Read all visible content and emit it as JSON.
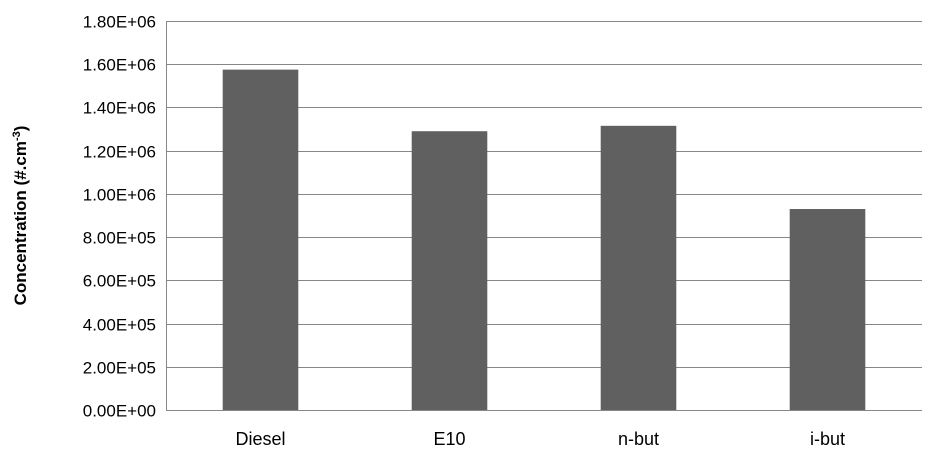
{
  "chart_data": {
    "type": "bar",
    "categories": [
      "Diesel",
      "E10",
      "n-but",
      "i-but"
    ],
    "values": [
      1575000,
      1290000,
      1315000,
      930000
    ],
    "title": "",
    "xlabel": "",
    "ylabel": "Concentration (#.cm",
    "ylabel_sup": "-3",
    "ylabel_close": ")",
    "ylim": [
      0,
      1800000
    ],
    "yticks": [
      0,
      200000,
      400000,
      600000,
      800000,
      1000000,
      1200000,
      1400000,
      1600000,
      1800000
    ],
    "ytick_labels": [
      "0.00E+00",
      "2.00E+05",
      "4.00E+05",
      "6.00E+05",
      "8.00E+05",
      "1.00E+06",
      "1.20E+06",
      "1.40E+06",
      "1.60E+06",
      "1.80E+06"
    ],
    "grid": true,
    "legend": "none",
    "bar_color": "#606060"
  }
}
